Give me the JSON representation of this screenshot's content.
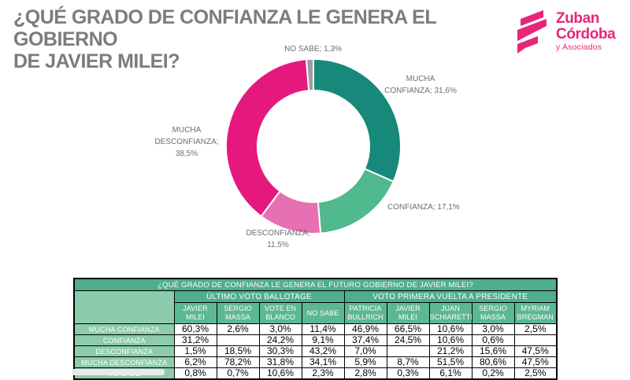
{
  "header": {
    "title_lines": [
      "¿QUÉ GRADO DE CONFIANZA LE GENERA EL GOBIERNO",
      "DE JAVIER MILEI?"
    ],
    "logo": {
      "line1": "Zuban",
      "line2": "Córdoba",
      "line3": "y Asociados"
    }
  },
  "colors": {
    "teal": "#16897A",
    "green": "#50B98D",
    "light_pink": "#E770B2",
    "magenta": "#E5187D",
    "gray": "#9D9D9C",
    "logo_pink": "#E8247B",
    "table_header_green": "#4FAE8C",
    "table_subheader_green": "#5CB794",
    "table_label_green": "#8CCBAB",
    "title_gray": "#7A7C7F",
    "label_gray": "#6D6E71"
  },
  "chart_data": {
    "type": "pie",
    "donut": true,
    "direction": "clockwise",
    "start_angle_deg": 0,
    "title": "¿QUÉ GRADO DE CONFIANZA LE GENERA EL GOBIERNO DE JAVIER MILEI?",
    "slices": [
      {
        "label": "MUCHA CONFIANZA",
        "value": 31.6,
        "color": "#16897A",
        "display_lines": [
          "MUCHA",
          "CONFIANZA; 31,6%"
        ]
      },
      {
        "label": "CONFIANZA",
        "value": 17.1,
        "color": "#50B98D",
        "display_lines": [
          "CONFIANZA; 17,1%"
        ]
      },
      {
        "label": "DESCONFIANZA",
        "value": 11.5,
        "color": "#E770B2",
        "display_lines": [
          "DESCONFIANZA;",
          "11,5%"
        ]
      },
      {
        "label": "MUCHA DESCONFIANZA",
        "value": 38.5,
        "color": "#E5187D",
        "display_lines": [
          "MUCHA",
          "DESCONFIANZA;",
          "38,5%"
        ]
      },
      {
        "label": "NO SABE",
        "value": 1.3,
        "color": "#9D9D9C",
        "display_lines": [
          "NO SABE; 1,3%"
        ]
      }
    ]
  },
  "table": {
    "title": "¿QUÉ GRADO DE CONFIANZA LE GENERA EL FUTURO GOBIERNO DE JAVIER MILEI?",
    "groups": [
      {
        "label": "ÚLTIMO VOTO BALLOTAGE",
        "span": 4
      },
      {
        "label": "VOTO PRIMERA VUELTA A PRESIDENTE",
        "span": 5
      }
    ],
    "columns": [
      "JAVIER MILEI",
      "SERGIO MASSA",
      "VOTE EN BLANCO",
      "NO SABE",
      "PATRICIA BULLRICH",
      "JAVIER MILEI",
      "JUAN SCHIARETTI",
      "SERGIO MASSA",
      "MYRIAM BREGMAN"
    ],
    "rows": [
      {
        "label": "MUCHA CONFIANZA",
        "values": [
          "60,3%",
          "2,6%",
          "3,0%",
          "11,4%",
          "46,9%",
          "66,5%",
          "10,6%",
          "3,0%",
          "2,5%"
        ]
      },
      {
        "label": "CONFIANZA",
        "values": [
          "31,2%",
          "",
          "24,2%",
          "9,1%",
          "37,4%",
          "24,5%",
          "10,6%",
          "0,6%",
          ""
        ]
      },
      {
        "label": "DESCONFIANZA",
        "values": [
          "1,5%",
          "18,5%",
          "30,3%",
          "43,2%",
          "7,0%",
          "",
          "21,2%",
          "15,6%",
          "47,5%"
        ]
      },
      {
        "label": "MUCHA DESCONFIANZA",
        "values": [
          "6,2%",
          "78,2%",
          "31,8%",
          "34,1%",
          "5,9%",
          "8,7%",
          "51,5%",
          "80,6%",
          "47,5%"
        ]
      },
      {
        "label": "NO SABE",
        "values": [
          "0,8%",
          "0,7%",
          "10,6%",
          "2,3%",
          "2,8%",
          "0,3%",
          "6,1%",
          "0,2%",
          "2,5%"
        ]
      }
    ]
  }
}
